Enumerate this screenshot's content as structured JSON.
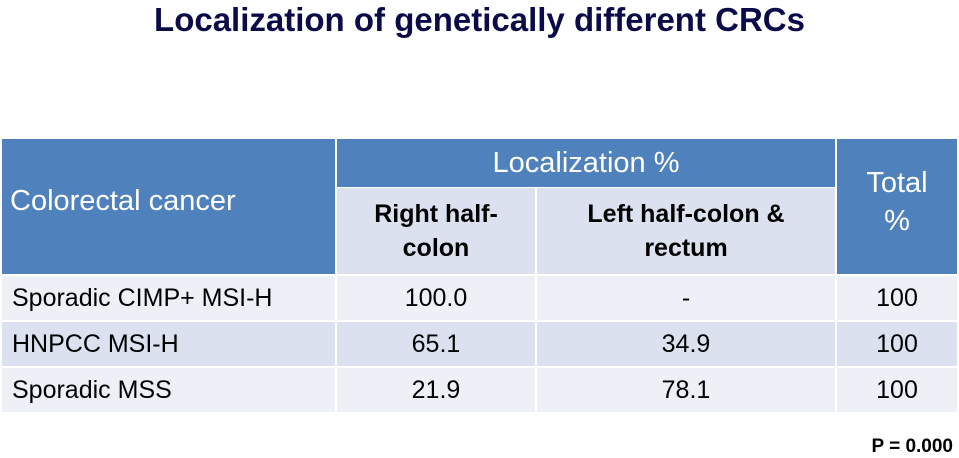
{
  "title": "Localization of genetically different CRCs",
  "table": {
    "header": {
      "colorectal": "Colorectal cancer",
      "localization": "Localization  %",
      "right": "Right half-colon",
      "left": "Left half-colon & rectum",
      "total": "Total %"
    },
    "rows": [
      {
        "label": "Sporadic  CIMP+ MSI-H",
        "right": "100.0",
        "left": "-",
        "total": "100"
      },
      {
        "label": "HNPCC  MSI-H",
        "right": "65.1",
        "left": "34.9",
        "total": "100"
      },
      {
        "label": "Sporadic  MSS",
        "right": "21.9",
        "left": "78.1",
        "total": "100"
      }
    ]
  },
  "note": "P = 0.000",
  "colors": {
    "header_blue": "#4f81bd",
    "light_row": "#dbe1ef",
    "lighter_row": "#eef0f7"
  }
}
